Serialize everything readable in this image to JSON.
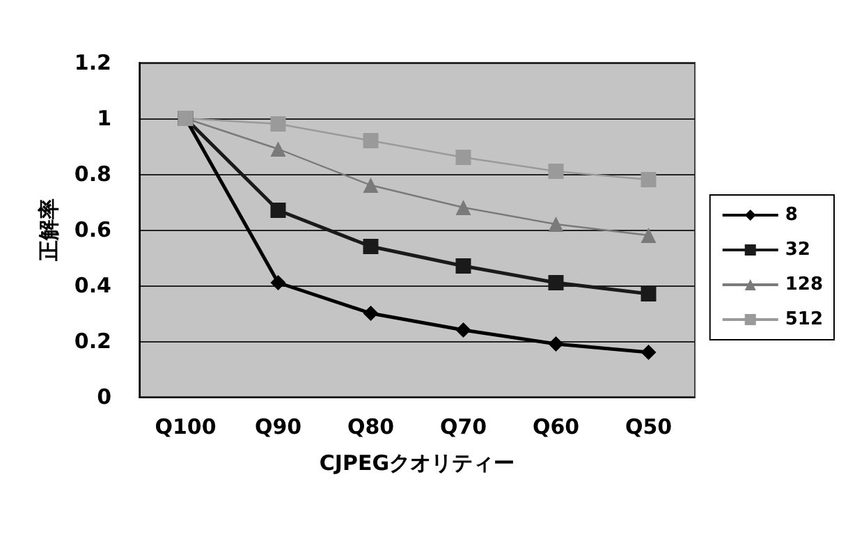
{
  "chart_data": {
    "type": "line",
    "xlabel": "CJPEGクオリティー",
    "ylabel": "正解率",
    "categories": [
      "Q100",
      "Q90",
      "Q80",
      "Q70",
      "Q60",
      "Q50"
    ],
    "series": [
      {
        "name": "8",
        "color": "#000000",
        "marker": "diamond",
        "values": [
          1,
          0.41,
          0.3,
          0.24,
          0.19,
          0.16
        ]
      },
      {
        "name": "32",
        "color": "#1a1a1a",
        "marker": "square",
        "values": [
          1,
          0.67,
          0.54,
          0.47,
          0.41,
          0.37
        ]
      },
      {
        "name": "128",
        "color": "#7a7a7a",
        "marker": "triangle",
        "values": [
          1,
          0.89,
          0.76,
          0.68,
          0.62,
          0.58
        ]
      },
      {
        "name": "512",
        "color": "#9a9a9a",
        "marker": "square",
        "values": [
          1,
          0.98,
          0.92,
          0.86,
          0.81,
          0.78
        ]
      }
    ],
    "ylim": [
      0,
      1.2
    ],
    "yticks": [
      0,
      0.2,
      0.4,
      0.6,
      0.8,
      1,
      1.2
    ],
    "grid": "y",
    "legend": "right",
    "line_style": "solid"
  }
}
